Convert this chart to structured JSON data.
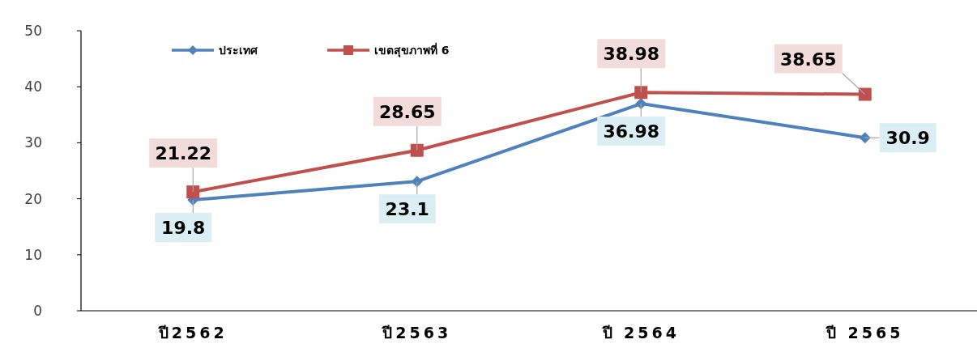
{
  "chart_data": {
    "type": "line",
    "categories": [
      "ปี2562",
      "ปี2563",
      "ปี 2564",
      "ปี 2565"
    ],
    "series": [
      {
        "name": "ประเทศ",
        "color": "#4f81bd",
        "marker": "diamond",
        "values": [
          19.8,
          23.1,
          36.98,
          30.9
        ]
      },
      {
        "name": "เขตสุขภาพที่ 6",
        "color": "#c0504d",
        "marker": "square",
        "values": [
          21.22,
          28.65,
          38.98,
          38.65
        ]
      }
    ],
    "ylim": [
      0,
      50
    ],
    "yticks": [
      0,
      10,
      20,
      30,
      40,
      50
    ],
    "grid": false,
    "legend": "top left",
    "data_labels": true,
    "line_style": "solid"
  }
}
